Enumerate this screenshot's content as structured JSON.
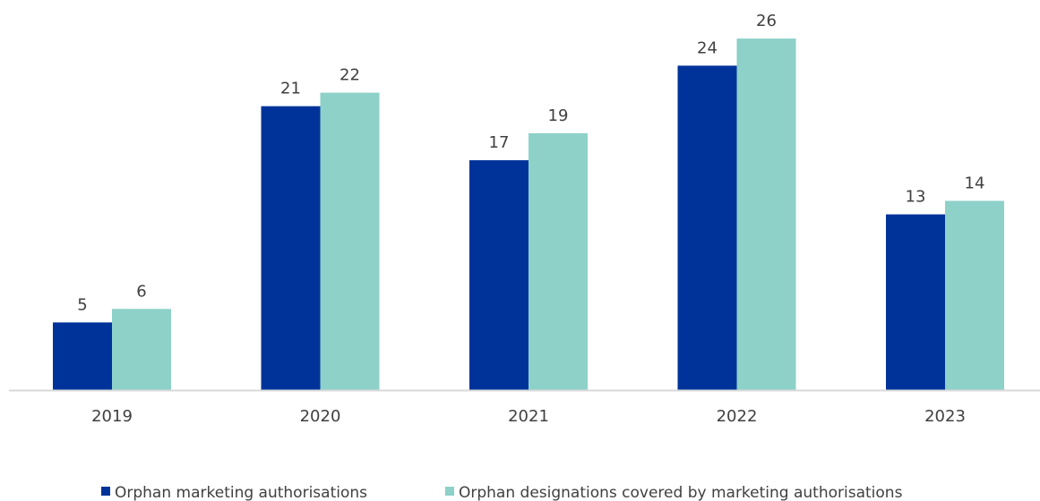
{
  "chart_data": {
    "type": "bar",
    "categories": [
      "2019",
      "2020",
      "2021",
      "2022",
      "2023"
    ],
    "series": [
      {
        "name": "Orphan marketing authorisations",
        "values": [
          5,
          21,
          17,
          24,
          13
        ],
        "color": "#003399"
      },
      {
        "name": "Orphan designations covered by marketing authorisations",
        "values": [
          6,
          22,
          19,
          26,
          14
        ],
        "color": "#8dd1c9"
      }
    ],
    "title": "",
    "xlabel": "",
    "ylabel": "",
    "ylim": [
      0,
      26
    ],
    "grid": false,
    "data_labels": true,
    "legend_position": "bottom",
    "axis_color": "#d9d9d9",
    "label_color": "#404040"
  }
}
